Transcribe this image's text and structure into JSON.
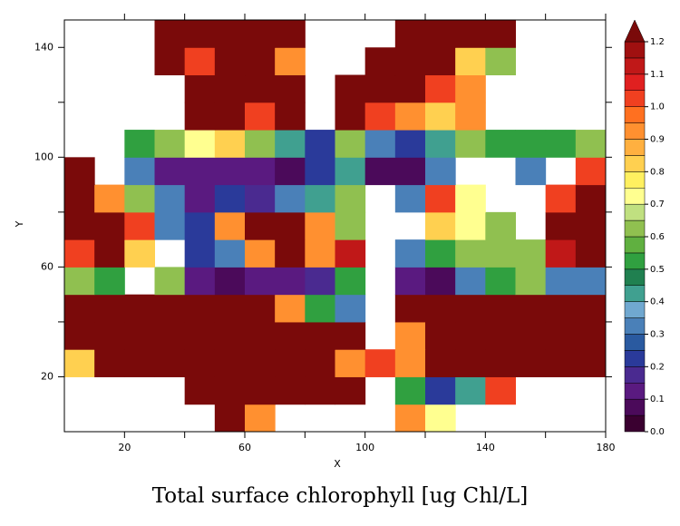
{
  "chart_data": {
    "type": "heatmap",
    "title": "Total surface chlorophyll [ug Chl/L]",
    "x_label": "X",
    "y_label": "Y",
    "xlim": [
      0,
      180
    ],
    "ylim": [
      0,
      150
    ],
    "xticks": [
      20,
      60,
      100,
      140,
      180
    ],
    "yticks": [
      20,
      60,
      100,
      140
    ],
    "xminor": [
      40,
      80,
      120,
      160
    ],
    "yminor": [
      40,
      80,
      120
    ],
    "xbins": [
      0,
      10,
      20,
      30,
      40,
      50,
      60,
      70,
      80,
      90,
      100,
      110,
      120,
      130,
      140,
      150,
      160,
      170,
      180
    ],
    "ybins": [
      0,
      10,
      20,
      30,
      40,
      50,
      60,
      70,
      80,
      90,
      100,
      110,
      120,
      130,
      140,
      150
    ],
    "z": [
      [
        null,
        null,
        null,
        null,
        null,
        1.3,
        0.9,
        null,
        null,
        null,
        null,
        0.9,
        0.7,
        null,
        null,
        null,
        null,
        null
      ],
      [
        null,
        null,
        null,
        null,
        1.3,
        1.3,
        1.3,
        1.3,
        1.3,
        1.3,
        null,
        0.5,
        0.2,
        0.4,
        1.0,
        null,
        null,
        null
      ],
      [
        0.8,
        1.3,
        1.3,
        1.3,
        1.3,
        1.3,
        1.3,
        1.3,
        1.3,
        0.9,
        1.0,
        0.9,
        1.3,
        1.3,
        1.3,
        1.3,
        1.3,
        1.3
      ],
      [
        1.3,
        1.3,
        1.3,
        1.3,
        1.3,
        1.3,
        1.3,
        1.3,
        1.3,
        1.3,
        null,
        0.9,
        1.3,
        1.3,
        1.3,
        1.3,
        1.3,
        1.3
      ],
      [
        1.3,
        1.3,
        1.3,
        1.3,
        1.3,
        1.3,
        1.3,
        0.9,
        0.5,
        0.3,
        null,
        1.3,
        1.3,
        1.3,
        1.3,
        1.3,
        1.3,
        1.3
      ],
      [
        0.6,
        0.5,
        null,
        0.6,
        0.1,
        0.05,
        0.1,
        0.1,
        0.15,
        0.5,
        null,
        0.1,
        0.05,
        0.3,
        0.5,
        0.6,
        0.3,
        0.3
      ],
      [
        1.0,
        1.3,
        0.8,
        null,
        0.2,
        0.3,
        0.9,
        1.2,
        0.9,
        1.1,
        null,
        0.3,
        0.5,
        0.6,
        0.6,
        0.6,
        1.1,
        1.3
      ],
      [
        1.3,
        1.3,
        1.0,
        0.3,
        0.2,
        0.9,
        1.3,
        1.3,
        0.9,
        0.6,
        null,
        null,
        0.8,
        0.7,
        0.6,
        null,
        1.3,
        1.3
      ],
      [
        1.3,
        0.9,
        0.6,
        0.3,
        0.1,
        0.2,
        0.15,
        0.3,
        0.4,
        0.6,
        null,
        0.3,
        1.0,
        0.7,
        null,
        null,
        1.0,
        1.3
      ],
      [
        1.2,
        null,
        0.3,
        0.1,
        0.1,
        0.1,
        0.1,
        0.05,
        0.2,
        0.4,
        0.05,
        0.05,
        0.3,
        null,
        null,
        0.3,
        null,
        1.0
      ],
      [
        null,
        null,
        0.5,
        0.6,
        0.7,
        0.8,
        0.6,
        0.4,
        0.2,
        0.6,
        0.3,
        0.2,
        0.4,
        0.6,
        0.5,
        0.5,
        0.5,
        0.6
      ],
      [
        null,
        null,
        null,
        null,
        1.3,
        1.2,
        1.0,
        1.3,
        null,
        1.3,
        1.0,
        0.9,
        0.8,
        0.9,
        null,
        null,
        null,
        null
      ],
      [
        null,
        null,
        null,
        null,
        1.3,
        1.3,
        1.3,
        1.3,
        null,
        1.3,
        1.3,
        1.3,
        1.0,
        0.9,
        null,
        null,
        null,
        null
      ],
      [
        null,
        null,
        null,
        1.3,
        1.0,
        1.3,
        1.3,
        0.9,
        null,
        null,
        1.3,
        1.3,
        1.3,
        0.8,
        0.6,
        null,
        null,
        null
      ],
      [
        null,
        null,
        null,
        1.3,
        1.3,
        1.3,
        1.3,
        1.3,
        null,
        null,
        null,
        1.3,
        1.3,
        1.3,
        1.3,
        null,
        null,
        null
      ]
    ],
    "levels": [
      0,
      0.05,
      0.1,
      0.15,
      0.2,
      0.25,
      0.3,
      0.35,
      0.4,
      0.45,
      0.5,
      0.55,
      0.6,
      0.65,
      0.7,
      0.75,
      0.8,
      0.85,
      0.9,
      0.95,
      1.0,
      1.05,
      1.1,
      1.15,
      1.2
    ],
    "colors": [
      "#3a0030",
      "#4b0a5a",
      "#5a1a80",
      "#4a2a90",
      "#2a3a9a",
      "#2a5aa0",
      "#4a80b8",
      "#70a8d0",
      "#40a090",
      "#208050",
      "#30a040",
      "#60b040",
      "#90c050",
      "#c0e080",
      "#ffff90",
      "#fff060",
      "#ffd050",
      "#ffb040",
      "#ff9030",
      "#ff7020",
      "#f04020",
      "#e02020",
      "#c01818",
      "#a01010",
      "#7a0a0a"
    ],
    "cticks": [
      {
        "value": 0,
        "label": "0.0"
      },
      0.1,
      0.2,
      0.3,
      0.4,
      0.5,
      0.6,
      0.7,
      0.8,
      0.9,
      {
        "value": 1,
        "label": "1.0"
      },
      1.1,
      1.2
    ]
  }
}
